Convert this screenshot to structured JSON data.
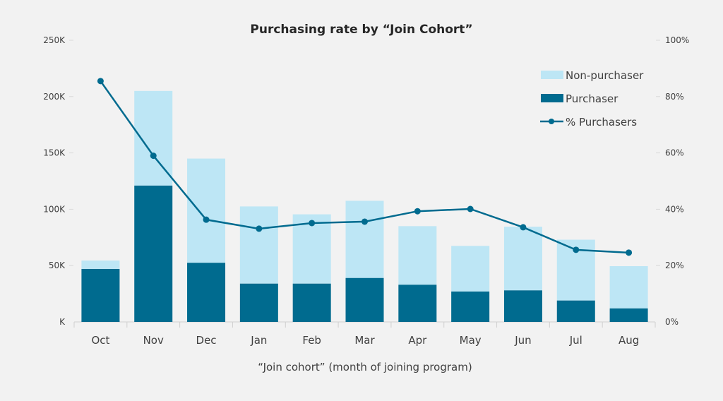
{
  "chart_data": {
    "type": "bar+line",
    "title": "Purchasing rate by “Join Cohort”",
    "xlabel": "“Join cohort” (month of joining program)",
    "categories": [
      "Oct",
      "Nov",
      "Dec",
      "Jan",
      "Feb",
      "Mar",
      "Apr",
      "May",
      "Jun",
      "Jul",
      "Aug"
    ],
    "series": [
      {
        "name": "Purchaser",
        "type": "stacked-bar",
        "axis": "left",
        "color": "#006b8f",
        "values": [
          47,
          121,
          52.5,
          34,
          34,
          39,
          33,
          27,
          28,
          19,
          12
        ]
      },
      {
        "name": "Non-purchaser",
        "type": "stacked-bar",
        "axis": "left",
        "color": "#bde6f5",
        "values": [
          7.5,
          84,
          92.5,
          68.5,
          61.5,
          68.5,
          52,
          40.5,
          56.5,
          54,
          37.5
        ]
      },
      {
        "name": "% Purchasers",
        "type": "line",
        "axis": "right",
        "color": "#006b8f",
        "values": [
          85.5,
          59,
          36.3,
          33.1,
          35.1,
          35.6,
          39.3,
          40.1,
          33.6,
          25.6,
          24.6
        ]
      }
    ],
    "left_axis": {
      "ylim": [
        0,
        250
      ],
      "unit": "K",
      "ticks": [
        "K",
        "50K",
        "100K",
        "150K",
        "200K",
        "250K"
      ]
    },
    "right_axis": {
      "ylim": [
        0,
        100
      ],
      "unit": "%",
      "ticks": [
        "0%",
        "20%",
        "40%",
        "60%",
        "80%",
        "100%"
      ]
    },
    "legend": {
      "placement": "top-right",
      "entries": [
        "Non-purchaser",
        "Purchaser",
        "% Purchasers"
      ]
    },
    "grid": false
  }
}
